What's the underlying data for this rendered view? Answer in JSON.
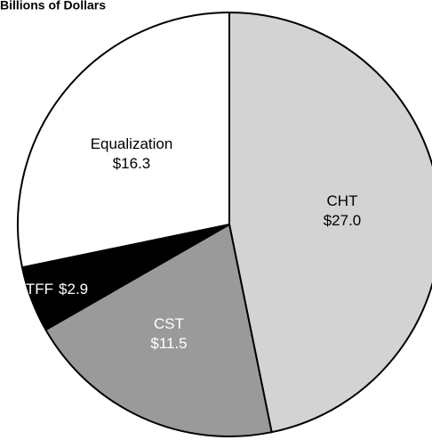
{
  "chart_data": {
    "type": "pie",
    "title": "Billions of Dollars",
    "categories": [
      "CHT",
      "CST",
      "TFF",
      "Equalization"
    ],
    "values": [
      27.0,
      11.5,
      2.9,
      16.3
    ],
    "value_labels": [
      "$27.0",
      "$11.5",
      "$2.9",
      "$16.3"
    ],
    "colors": [
      "#d3d3d3",
      "#9a9a9a",
      "#000000",
      "#ffffff"
    ]
  }
}
